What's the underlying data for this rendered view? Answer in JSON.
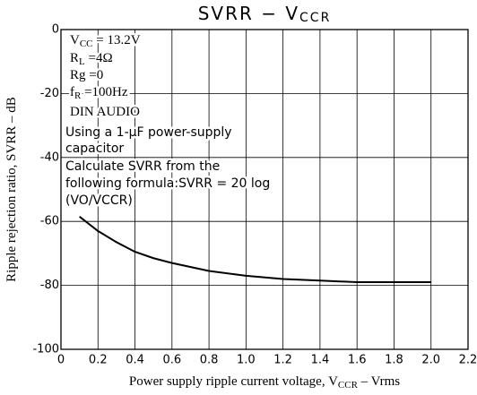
{
  "chart_data": {
    "type": "line",
    "title": [
      {
        "text": "SVRR − V"
      },
      {
        "text": "CCR",
        "subscript": true
      }
    ],
    "x_label": [
      {
        "text": "Power supply ripple current voltage, V"
      },
      {
        "text": "CCR",
        "subscript": true
      },
      {
        "text": " – Vrms"
      }
    ],
    "y_label": [
      {
        "text": "Ripple rejection ratio, SVRR – dB"
      }
    ],
    "annotations": [
      [
        {
          "text": "V"
        },
        {
          "text": "CC",
          "subscript": true
        },
        {
          "text": " = 13.2V"
        }
      ],
      [
        {
          "text": "R"
        },
        {
          "text": "L",
          "subscript": true
        },
        {
          "text": " =4Ω"
        }
      ],
      [
        {
          "text": "Rg =0"
        }
      ],
      [
        {
          "text": "f"
        },
        {
          "text": "R",
          "subscript": true
        },
        {
          "text": " =100Hz"
        }
      ],
      [
        {
          "text": "DIN AUDIO"
        }
      ],
      [
        {
          "text": "Using a 1-μF power-supply",
          "sans": true
        }
      ],
      [
        {
          "text": "capacitor",
          "sans": true
        }
      ],
      [
        {
          "text": "Calculate SVRR from the",
          "sans": true
        }
      ],
      [
        {
          "text": "following formula:SVRR = 20 log",
          "sans": true
        }
      ],
      [
        {
          "text": "(VO/VCCR)",
          "sans": true
        }
      ]
    ],
    "x": [
      0.1,
      0.2,
      0.3,
      0.4,
      0.5,
      0.6,
      0.8,
      1.0,
      1.2,
      1.4,
      1.6,
      1.8,
      2.0
    ],
    "series": [
      {
        "color": "#000000",
        "values": [
          -58.5,
          -63,
          -66.5,
          -69.5,
          -71.5,
          -73,
          -75.5,
          -77,
          -78,
          -78.5,
          -79,
          -79,
          -79
        ]
      }
    ],
    "xlim": [
      0,
      2.2
    ],
    "ylim": [
      -100,
      0
    ],
    "xticks": [
      0,
      0.2,
      0.4,
      0.6,
      0.8,
      {
        "value": 1,
        "label": "1.0"
      },
      1.2,
      1.4,
      1.6,
      1.8,
      {
        "value": 2,
        "label": "2.0"
      },
      2.2
    ],
    "yticks": [
      0,
      -20,
      -40,
      -60,
      -80,
      -100
    ],
    "grid": true
  }
}
